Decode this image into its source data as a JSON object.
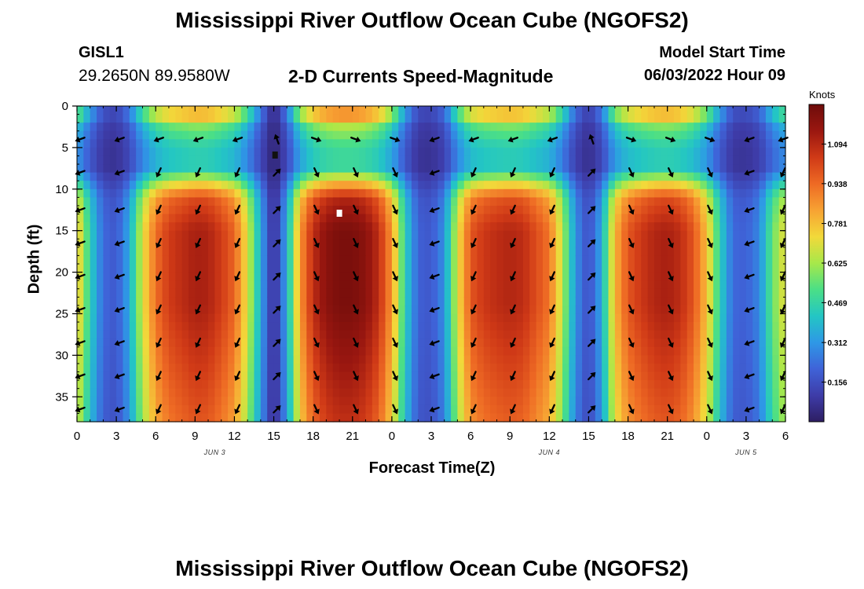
{
  "header": {
    "title": "Mississippi River Outflow Ocean Cube (NGOFS2)",
    "station_id": "GISL1",
    "coordinates": "29.2650N  89.9580W",
    "subtitle": "2-D Currents Speed-Magnitude",
    "model_start_label": "Model Start Time",
    "model_start_value": "06/03/2022 Hour 09"
  },
  "footer": {
    "title": "Mississippi River Outflow Ocean Cube (NGOFS2)"
  },
  "chart_data": {
    "type": "heatmap",
    "title": "2-D Currents Speed-Magnitude",
    "xlabel": "Forecast Time(Z)",
    "ylabel": "Depth (ft)",
    "xlim_hours": [
      0,
      54
    ],
    "ylim": [
      0,
      38
    ],
    "y_inverted": true,
    "x_ticks": [
      {
        "h": 0,
        "label": "0"
      },
      {
        "h": 3,
        "label": "3"
      },
      {
        "h": 6,
        "label": "6"
      },
      {
        "h": 9,
        "label": "9"
      },
      {
        "h": 12,
        "label": "12"
      },
      {
        "h": 15,
        "label": "15"
      },
      {
        "h": 18,
        "label": "18"
      },
      {
        "h": 21,
        "label": "21"
      },
      {
        "h": 24,
        "label": "0"
      },
      {
        "h": 27,
        "label": "3"
      },
      {
        "h": 30,
        "label": "6"
      },
      {
        "h": 33,
        "label": "9"
      },
      {
        "h": 36,
        "label": "12"
      },
      {
        "h": 39,
        "label": "15"
      },
      {
        "h": 42,
        "label": "18"
      },
      {
        "h": 45,
        "label": "21"
      },
      {
        "h": 48,
        "label": "0"
      },
      {
        "h": 51,
        "label": "3"
      },
      {
        "h": 54,
        "label": "6"
      }
    ],
    "date_labels": [
      {
        "h": 10.5,
        "label": "JUN 3"
      },
      {
        "h": 36,
        "label": "JUN 4"
      },
      {
        "h": 51,
        "label": "JUN 5"
      }
    ],
    "y_ticks": [
      0,
      5,
      10,
      15,
      20,
      25,
      30,
      35
    ],
    "colorbar": {
      "unit": "Knots",
      "min": 0,
      "max": 1.25,
      "ticks": [
        1.094,
        0.938,
        0.781,
        0.625,
        0.469,
        0.312,
        0.156
      ],
      "colors": [
        "#2d1e63",
        "#3e3ca8",
        "#3f63d8",
        "#2e98e6",
        "#23c6c4",
        "#4bdf86",
        "#a7e84a",
        "#f2d93a",
        "#f7a233",
        "#ee6a24",
        "#d03a17",
        "#9a1710",
        "#6e0c0a"
      ]
    },
    "speed_profile": [
      {
        "h": 0,
        "v": 0.78
      },
      {
        "h": 1,
        "v": 0.45
      },
      {
        "h": 2,
        "v": 0.22
      },
      {
        "h": 3,
        "v": 0.18
      },
      {
        "h": 4,
        "v": 0.35
      },
      {
        "h": 5,
        "v": 0.7
      },
      {
        "h": 6,
        "v": 0.93
      },
      {
        "h": 7,
        "v": 1.04
      },
      {
        "h": 8,
        "v": 1.08
      },
      {
        "h": 9,
        "v": 1.12
      },
      {
        "h": 10,
        "v": 1.11
      },
      {
        "h": 11,
        "v": 1.04
      },
      {
        "h": 12,
        "v": 0.95
      },
      {
        "h": 13,
        "v": 0.7
      },
      {
        "h": 14,
        "v": 0.35
      },
      {
        "h": 15,
        "v": 0.05
      },
      {
        "h": 16,
        "v": 0.35
      },
      {
        "h": 17,
        "v": 0.85
      },
      {
        "h": 18,
        "v": 1.08
      },
      {
        "h": 19,
        "v": 1.18
      },
      {
        "h": 20,
        "v": 1.22
      },
      {
        "h": 21,
        "v": 1.22
      },
      {
        "h": 22,
        "v": 1.18
      },
      {
        "h": 23,
        "v": 1.08
      },
      {
        "h": 24,
        "v": 0.85
      },
      {
        "h": 25,
        "v": 0.45
      },
      {
        "h": 26,
        "v": 0.2
      },
      {
        "h": 27,
        "v": 0.18
      },
      {
        "h": 28,
        "v": 0.3
      },
      {
        "h": 29,
        "v": 0.7
      },
      {
        "h": 30,
        "v": 0.98
      },
      {
        "h": 31,
        "v": 1.05
      },
      {
        "h": 32,
        "v": 1.08
      },
      {
        "h": 33,
        "v": 1.1
      },
      {
        "h": 34,
        "v": 1.08
      },
      {
        "h": 35,
        "v": 1.0
      },
      {
        "h": 36,
        "v": 0.92
      },
      {
        "h": 37,
        "v": 0.65
      },
      {
        "h": 38,
        "v": 0.3
      },
      {
        "h": 39,
        "v": 0.15
      },
      {
        "h": 40,
        "v": 0.35
      },
      {
        "h": 41,
        "v": 0.8
      },
      {
        "h": 42,
        "v": 0.98
      },
      {
        "h": 43,
        "v": 1.05
      },
      {
        "h": 44,
        "v": 1.1
      },
      {
        "h": 45,
        "v": 1.12
      },
      {
        "h": 46,
        "v": 1.08
      },
      {
        "h": 47,
        "v": 0.98
      },
      {
        "h": 48,
        "v": 0.78
      },
      {
        "h": 49,
        "v": 0.45
      },
      {
        "h": 50,
        "v": 0.22
      },
      {
        "h": 51,
        "v": 0.2
      },
      {
        "h": 52,
        "v": 0.28
      },
      {
        "h": 53,
        "v": 0.55
      },
      {
        "h": 54,
        "v": 0.72
      }
    ],
    "vectors": {
      "hours": [
        0,
        3,
        6,
        9,
        12,
        15,
        18,
        21,
        24,
        27,
        30,
        33,
        36,
        39,
        42,
        45,
        48,
        51,
        54
      ],
      "depths": [
        4,
        8,
        12.5,
        16.5,
        20.5,
        24.5,
        28.5,
        32.5,
        36.5
      ],
      "angle_deg": [
        160,
        160,
        115,
        115,
        115,
        315,
        65,
        65,
        65,
        160,
        115,
        115,
        115,
        315,
        65,
        65,
        65,
        160,
        115
      ]
    },
    "missing_cells": [
      {
        "h": 15.1,
        "d": 5.9
      },
      {
        "h": 20.0,
        "d": 12.9
      }
    ]
  }
}
